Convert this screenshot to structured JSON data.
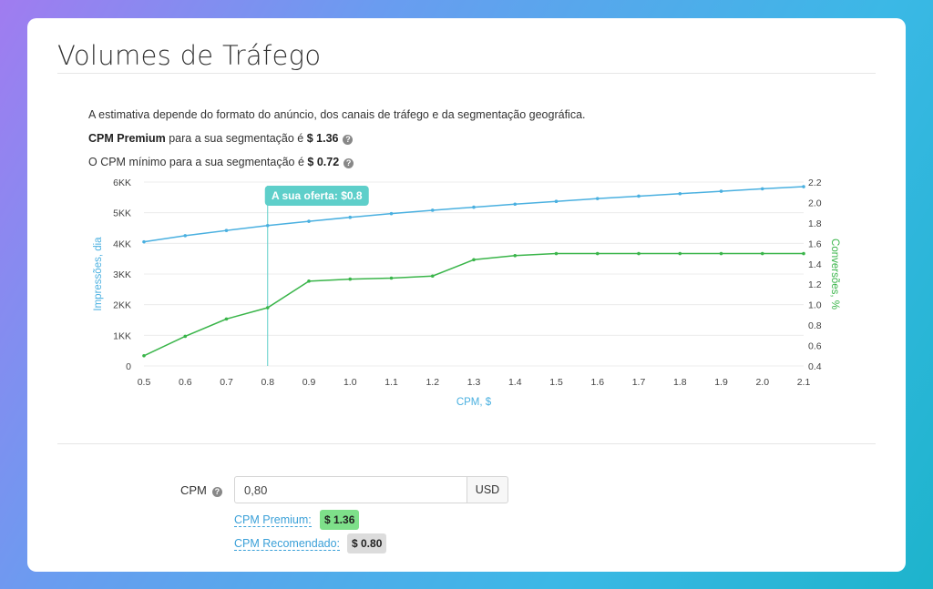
{
  "page": {
    "title": "Volumes de Tráfego",
    "info_line1": "A estimativa depende do formato do anúncio, dos canais de tráfego e da segmentação geográfica.",
    "info_line2_bold": "CPM Premium",
    "info_line2_text": " para a sua segmentação é ",
    "info_line2_value": "$ 1.36",
    "info_line3_text": "O CPM mínimo para a sua segmentação é ",
    "info_line3_value": "$ 0.72",
    "help_glyph": "?"
  },
  "colors": {
    "impressions": "#4ab0e0",
    "conversions": "#3ab54a",
    "offer": "#5ecfca",
    "premium_badge": "#7ee08a",
    "recommended_badge": "#dcdcdc"
  },
  "form": {
    "cpm_label": "CPM",
    "cpm_value": "0,80",
    "currency": "USD",
    "premium_link": "CPM Premium:",
    "premium_value": "$ 1.36",
    "recommended_link": "CPM Recomendado:",
    "recommended_value": "$ 0.80"
  },
  "chart_data": {
    "type": "line",
    "x": [
      0.5,
      0.6,
      0.7,
      0.8,
      0.9,
      1.0,
      1.1,
      1.2,
      1.3,
      1.4,
      1.5,
      1.6,
      1.7,
      1.8,
      1.9,
      2.0,
      2.1
    ],
    "x_ticks": [
      "0.5",
      "0.6",
      "0.7",
      "0.8",
      "0.9",
      "1.0",
      "1.1",
      "1.2",
      "1.3",
      "1.4",
      "1.5",
      "1.6",
      "1.7",
      "1.8",
      "1.9",
      "2.0",
      "2.1"
    ],
    "xlabel": "CPM, $",
    "xlim": [
      0.5,
      2.1
    ],
    "y_left": {
      "label": "Impressões, dia",
      "lim": [
        0,
        6000
      ],
      "ticks": [
        0,
        1000,
        2000,
        3000,
        4000,
        5000,
        6000
      ],
      "tick_labels": [
        "0",
        "1KK",
        "2KK",
        "3KK",
        "4KK",
        "5KK",
        "6KK"
      ]
    },
    "y_right": {
      "label": "Conversões, %",
      "lim": [
        0.4,
        2.2
      ],
      "ticks": [
        0.4,
        0.6,
        0.8,
        1.0,
        1.2,
        1.4,
        1.6,
        1.8,
        2.0,
        2.2
      ],
      "tick_labels": [
        "0.4",
        "0.6",
        "0.8",
        "1.0",
        "1.2",
        "1.4",
        "1.6",
        "1.8",
        "2.0",
        "2.2"
      ]
    },
    "series": [
      {
        "name": "Impressões, dia",
        "axis": "left",
        "values": [
          4050,
          4250,
          4420,
          4580,
          4720,
          4850,
          4970,
          5080,
          5180,
          5280,
          5370,
          5460,
          5540,
          5620,
          5700,
          5780,
          5850
        ]
      },
      {
        "name": "Conversões, %",
        "axis": "right",
        "values": [
          0.5,
          0.69,
          0.86,
          0.97,
          1.23,
          1.25,
          1.26,
          1.28,
          1.44,
          1.48,
          1.5,
          1.5,
          1.5,
          1.5,
          1.5,
          1.5,
          1.5
        ]
      }
    ],
    "marker": {
      "x": 0.8,
      "label": "A sua oferta: $0.8"
    },
    "grid": true
  }
}
